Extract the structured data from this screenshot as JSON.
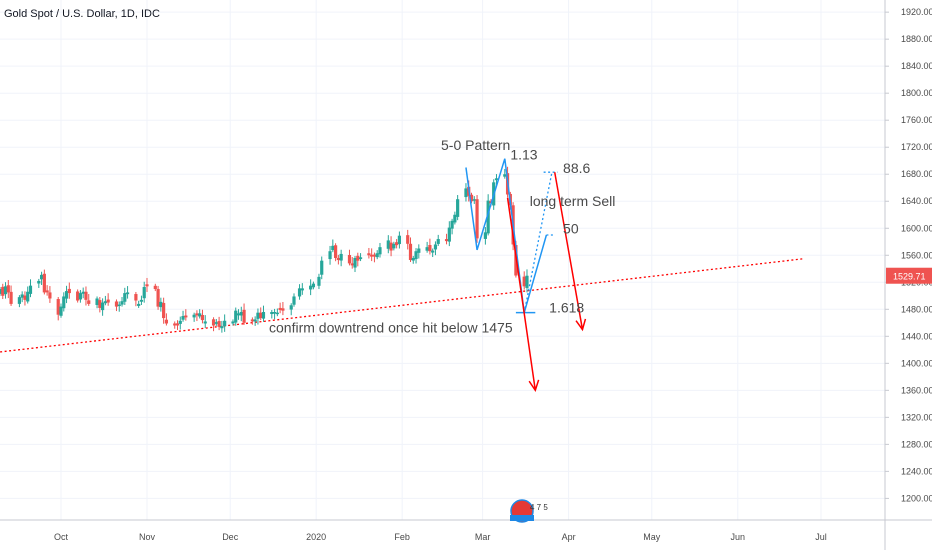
{
  "symbol_title": "Gold Spot / U.S. Dollar, 1D, IDC",
  "colors": {
    "up": "#26a69a",
    "down": "#ef5350",
    "pattern": "#2196f3",
    "arrow": "#ff0000",
    "trendline": "#ff0000",
    "grid": "#f0f3fa",
    "axis_text": "#4a4a4a",
    "annotation_text": "#4a4a4a",
    "price_tag_bg": "#ef5350"
  },
  "current_price_label": "1529.71",
  "logo_text": "4 7 5",
  "chart_data": {
    "type": "candlestick",
    "title": "Gold Spot / U.S. Dollar, 1D, IDC",
    "xlabel": "",
    "ylabel": "",
    "ylim": [
      1168,
      1938
    ],
    "grid": true,
    "y_ticks": [
      1200,
      1240,
      1280,
      1320,
      1360,
      1400,
      1440,
      1480,
      1520,
      1560,
      1600,
      1640,
      1680,
      1720,
      1760,
      1800,
      1840,
      1880,
      1920
    ],
    "y_tick_labels": [
      "1200.00",
      "1240.00",
      "1280.00",
      "1320.00",
      "1360.00",
      "1400.00",
      "1440.00",
      "1480.00",
      "1520.00",
      "1560.00",
      "1600.00",
      "1640.00",
      "1680.00",
      "1720.00",
      "1760.00",
      "1800.00",
      "1840.00",
      "1880.00",
      "1920.00"
    ],
    "x_ticks": [
      {
        "label": "Oct",
        "date": "2019-10-01"
      },
      {
        "label": "Nov",
        "date": "2019-11-01"
      },
      {
        "label": "Dec",
        "date": "2019-12-01"
      },
      {
        "label": "2020",
        "date": "2020-01-01"
      },
      {
        "label": "Feb",
        "date": "2020-02-01"
      },
      {
        "label": "Mar",
        "date": "2020-03-01"
      },
      {
        "label": "Apr",
        "date": "2020-04-01"
      },
      {
        "label": "May",
        "date": "2020-05-01"
      },
      {
        "label": "Jun",
        "date": "2020-06-01"
      },
      {
        "label": "Jul",
        "date": "2020-07-01"
      }
    ],
    "closes": [
      {
        "date": "2019-09-09",
        "close": 1510
      },
      {
        "date": "2019-09-10",
        "close": 1500
      },
      {
        "date": "2019-09-11",
        "close": 1514
      },
      {
        "date": "2019-09-12",
        "close": 1505
      },
      {
        "date": "2019-09-13",
        "close": 1488
      },
      {
        "date": "2019-09-16",
        "close": 1498
      },
      {
        "date": "2019-09-17",
        "close": 1502
      },
      {
        "date": "2019-09-18",
        "close": 1494
      },
      {
        "date": "2019-09-19",
        "close": 1506
      },
      {
        "date": "2019-09-20",
        "close": 1515
      },
      {
        "date": "2019-09-23",
        "close": 1522
      },
      {
        "date": "2019-09-24",
        "close": 1531
      },
      {
        "date": "2019-09-25",
        "close": 1505
      },
      {
        "date": "2019-09-26",
        "close": 1505
      },
      {
        "date": "2019-09-27",
        "close": 1496
      },
      {
        "date": "2019-09-30",
        "close": 1472
      },
      {
        "date": "2019-10-01",
        "close": 1484
      },
      {
        "date": "2019-10-02",
        "close": 1499
      },
      {
        "date": "2019-10-03",
        "close": 1507
      },
      {
        "date": "2019-10-04",
        "close": 1504
      },
      {
        "date": "2019-10-07",
        "close": 1493
      },
      {
        "date": "2019-10-08",
        "close": 1504
      },
      {
        "date": "2019-10-09",
        "close": 1506
      },
      {
        "date": "2019-10-10",
        "close": 1494
      },
      {
        "date": "2019-10-11",
        "close": 1488
      },
      {
        "date": "2019-10-14",
        "close": 1496
      },
      {
        "date": "2019-10-15",
        "close": 1482
      },
      {
        "date": "2019-10-16",
        "close": 1490
      },
      {
        "date": "2019-10-17",
        "close": 1492
      },
      {
        "date": "2019-10-18",
        "close": 1490
      },
      {
        "date": "2019-10-21",
        "close": 1484
      },
      {
        "date": "2019-10-22",
        "close": 1487
      },
      {
        "date": "2019-10-23",
        "close": 1492
      },
      {
        "date": "2019-10-24",
        "close": 1504
      },
      {
        "date": "2019-10-25",
        "close": 1505
      },
      {
        "date": "2019-10-28",
        "close": 1493
      },
      {
        "date": "2019-10-29",
        "close": 1488
      },
      {
        "date": "2019-10-30",
        "close": 1494
      },
      {
        "date": "2019-10-31",
        "close": 1513
      },
      {
        "date": "2019-11-01",
        "close": 1514
      },
      {
        "date": "2019-11-04",
        "close": 1510
      },
      {
        "date": "2019-11-05",
        "close": 1484
      },
      {
        "date": "2019-11-06",
        "close": 1491
      },
      {
        "date": "2019-11-07",
        "close": 1467
      },
      {
        "date": "2019-11-08",
        "close": 1459
      },
      {
        "date": "2019-11-11",
        "close": 1456
      },
      {
        "date": "2019-11-12",
        "close": 1456
      },
      {
        "date": "2019-11-13",
        "close": 1463
      },
      {
        "date": "2019-11-14",
        "close": 1470
      },
      {
        "date": "2019-11-15",
        "close": 1468
      },
      {
        "date": "2019-11-18",
        "close": 1472
      },
      {
        "date": "2019-11-19",
        "close": 1471
      },
      {
        "date": "2019-11-20",
        "close": 1474
      },
      {
        "date": "2019-11-21",
        "close": 1464
      },
      {
        "date": "2019-11-22",
        "close": 1462
      },
      {
        "date": "2019-11-25",
        "close": 1456
      },
      {
        "date": "2019-11-26",
        "close": 1461
      },
      {
        "date": "2019-11-27",
        "close": 1454
      },
      {
        "date": "2019-11-28",
        "close": 1455
      },
      {
        "date": "2019-11-29",
        "close": 1463
      },
      {
        "date": "2019-12-02",
        "close": 1462
      },
      {
        "date": "2019-12-03",
        "close": 1478
      },
      {
        "date": "2019-12-04",
        "close": 1474
      },
      {
        "date": "2019-12-05",
        "close": 1476
      },
      {
        "date": "2019-12-06",
        "close": 1460
      },
      {
        "date": "2019-12-09",
        "close": 1462
      },
      {
        "date": "2019-12-10",
        "close": 1465
      },
      {
        "date": "2019-12-11",
        "close": 1475
      },
      {
        "date": "2019-12-12",
        "close": 1467
      },
      {
        "date": "2019-12-13",
        "close": 1476
      },
      {
        "date": "2019-12-16",
        "close": 1476
      },
      {
        "date": "2019-12-17",
        "close": 1476
      },
      {
        "date": "2019-12-18",
        "close": 1475
      },
      {
        "date": "2019-12-19",
        "close": 1479
      },
      {
        "date": "2019-12-20",
        "close": 1478
      },
      {
        "date": "2019-12-23",
        "close": 1486
      },
      {
        "date": "2019-12-24",
        "close": 1499
      },
      {
        "date": "2019-12-26",
        "close": 1511
      },
      {
        "date": "2019-12-27",
        "close": 1511
      },
      {
        "date": "2019-12-30",
        "close": 1515
      },
      {
        "date": "2019-12-31",
        "close": 1518
      },
      {
        "date": "2020-01-02",
        "close": 1528
      },
      {
        "date": "2020-01-03",
        "close": 1552
      },
      {
        "date": "2020-01-06",
        "close": 1566
      },
      {
        "date": "2020-01-07",
        "close": 1574
      },
      {
        "date": "2020-01-08",
        "close": 1556
      },
      {
        "date": "2020-01-09",
        "close": 1553
      },
      {
        "date": "2020-01-10",
        "close": 1562
      },
      {
        "date": "2020-01-13",
        "close": 1548
      },
      {
        "date": "2020-01-14",
        "close": 1545
      },
      {
        "date": "2020-01-15",
        "close": 1556
      },
      {
        "date": "2020-01-16",
        "close": 1552
      },
      {
        "date": "2020-01-17",
        "close": 1557
      },
      {
        "date": "2020-01-20",
        "close": 1560
      },
      {
        "date": "2020-01-21",
        "close": 1558
      },
      {
        "date": "2020-01-22",
        "close": 1558
      },
      {
        "date": "2020-01-23",
        "close": 1563
      },
      {
        "date": "2020-01-24",
        "close": 1572
      },
      {
        "date": "2020-01-27",
        "close": 1582
      },
      {
        "date": "2020-01-28",
        "close": 1567
      },
      {
        "date": "2020-01-29",
        "close": 1577
      },
      {
        "date": "2020-01-30",
        "close": 1575
      },
      {
        "date": "2020-01-31",
        "close": 1589
      },
      {
        "date": "2020-02-03",
        "close": 1577
      },
      {
        "date": "2020-02-04",
        "close": 1553
      },
      {
        "date": "2020-02-05",
        "close": 1556
      },
      {
        "date": "2020-02-06",
        "close": 1566
      },
      {
        "date": "2020-02-07",
        "close": 1570
      },
      {
        "date": "2020-02-10",
        "close": 1572
      },
      {
        "date": "2020-02-11",
        "close": 1566
      },
      {
        "date": "2020-02-12",
        "close": 1567
      },
      {
        "date": "2020-02-13",
        "close": 1576
      },
      {
        "date": "2020-02-14",
        "close": 1584
      },
      {
        "date": "2020-02-17",
        "close": 1581
      },
      {
        "date": "2020-02-18",
        "close": 1601
      },
      {
        "date": "2020-02-19",
        "close": 1611
      },
      {
        "date": "2020-02-20",
        "close": 1620
      },
      {
        "date": "2020-02-21",
        "close": 1643
      },
      {
        "date": "2020-02-24",
        "close": 1659
      },
      {
        "date": "2020-02-25",
        "close": 1648
      },
      {
        "date": "2020-02-26",
        "close": 1640
      },
      {
        "date": "2020-02-27",
        "close": 1643
      },
      {
        "date": "2020-02-28",
        "close": 1585
      },
      {
        "date": "2020-03-02",
        "close": 1594
      },
      {
        "date": "2020-03-03",
        "close": 1641
      },
      {
        "date": "2020-03-04",
        "close": 1637
      },
      {
        "date": "2020-03-05",
        "close": 1668
      },
      {
        "date": "2020-03-06",
        "close": 1674
      },
      {
        "date": "2020-03-09",
        "close": 1680
      },
      {
        "date": "2020-03-10",
        "close": 1650
      },
      {
        "date": "2020-03-11",
        "close": 1634
      },
      {
        "date": "2020-03-12",
        "close": 1576
      },
      {
        "date": "2020-03-13",
        "close": 1530
      },
      {
        "date": "2020-03-16",
        "close": 1514
      },
      {
        "date": "2020-03-17",
        "close": 1529.71
      }
    ],
    "trendline": {
      "points": [
        {
          "date": "2019-09-01",
          "price": 1413
        },
        {
          "date": "2020-06-25",
          "price": 1555
        }
      ],
      "style": "dotted"
    },
    "pattern_5_0": {
      "label": "5-0 Pattern",
      "points": [
        {
          "date": "2020-02-24",
          "price": 1690
        },
        {
          "date": "2020-02-28",
          "price": 1568
        },
        {
          "date": "2020-03-09",
          "price": 1703
        },
        {
          "date": "2020-03-16",
          "price": 1475
        },
        {
          "date": "2020-03-24",
          "price": 1590
        }
      ],
      "base_line": {
        "date_start": "2020-03-13",
        "date_end": "2020-03-20",
        "price": 1475
      },
      "projection_lines": [
        {
          "from": {
            "date": "2020-03-16",
            "price": 1475
          },
          "to": {
            "date": "2020-03-26",
            "price": 1683
          },
          "style": "dotted"
        },
        {
          "from": {
            "date": "2020-03-24",
            "price": 1590
          },
          "to": {
            "date": "2020-03-27",
            "price": 1590
          },
          "style": "dotted"
        },
        {
          "from": {
            "date": "2020-03-23",
            "price": 1683
          },
          "to": {
            "date": "2020-03-28",
            "price": 1683
          },
          "style": "dotted"
        }
      ]
    },
    "arrows": [
      {
        "from": {
          "date": "2020-03-10",
          "price": 1645
        },
        "to": {
          "date": "2020-03-20",
          "price": 1360
        }
      },
      {
        "from": {
          "date": "2020-03-27",
          "price": 1683
        },
        "to": {
          "date": "2020-04-06",
          "price": 1450
        }
      }
    ],
    "annotations": [
      {
        "text": "5-0 Pattern",
        "date": "2020-02-15",
        "price": 1716
      },
      {
        "text": "1.13",
        "date": "2020-03-11",
        "price": 1702
      },
      {
        "text": "88.6",
        "date": "2020-03-30",
        "price": 1682
      },
      {
        "text": "long term Sell",
        "date": "2020-03-18",
        "price": 1633
      },
      {
        "text": "50",
        "date": "2020-03-30",
        "price": 1592
      },
      {
        "text": "1.618",
        "date": "2020-03-25",
        "price": 1475
      },
      {
        "text": "confirm downtrend once hit below 1475",
        "date": "2019-12-15",
        "price": 1446
      }
    ]
  }
}
